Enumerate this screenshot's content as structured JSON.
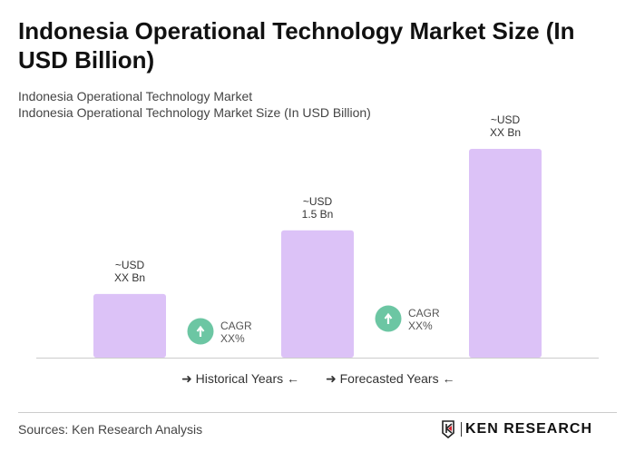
{
  "title": "Indonesia Operational Technology Market Size (In USD Billion)",
  "subtitle1": "Indonesia Operational Technology Market",
  "subtitle2": "Indonesia Operational Technology Market Size (In USD Billion)",
  "chart_data": {
    "type": "bar",
    "categories": [
      "",
      "",
      ""
    ],
    "values": [
      0.75,
      1.5,
      2.46
    ],
    "data_labels": [
      [
        "~USD",
        "XX Bn"
      ],
      [
        "~USD",
        "1.5 Bn"
      ],
      [
        "~USD",
        "XX Bn"
      ]
    ],
    "bar_color": "#dcc2f7",
    "cagr": [
      {
        "label": "CAGR",
        "value": "XX%"
      },
      {
        "label": "CAGR",
        "value": "XX%"
      }
    ],
    "cagr_color": "#6cc6a3",
    "legend": [
      "Historical Years",
      "Forecasted Years"
    ],
    "grid": false
  },
  "sources": "Sources: Ken Research Analysis",
  "logo_text": "KEN RESEARCH"
}
